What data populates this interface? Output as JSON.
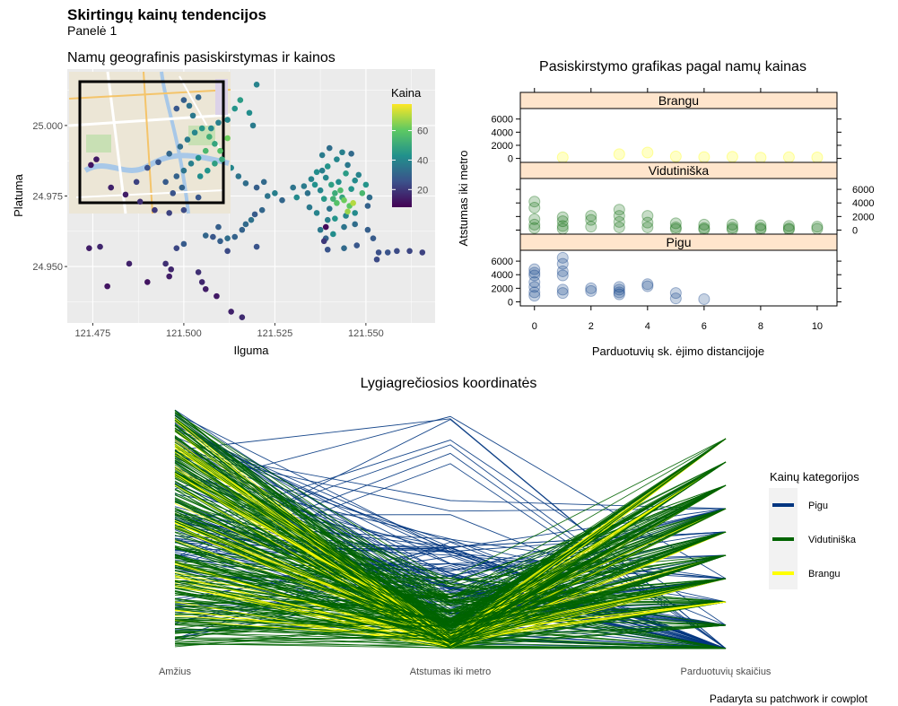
{
  "page": {
    "title": "Skirtingų kainų tendencijos",
    "subtitle": "Panelė 1",
    "caption": "Padaryta su patchwork ir cowplot"
  },
  "chart_data": [
    {
      "type": "scatter",
      "title": "Namų geografinis pasiskirstymas ir kainos",
      "xlabel": "Ilguma",
      "ylabel": "Platuma",
      "xlim": [
        121.468,
        121.569
      ],
      "ylim": [
        24.93,
        25.02
      ],
      "xticks": [
        121.475,
        121.5,
        121.525,
        121.55
      ],
      "xtick_labels": [
        "121.475",
        "121.500",
        "121.525",
        "121.550"
      ],
      "yticks": [
        24.95,
        24.975,
        25.0
      ],
      "ytick_labels": [
        "24.950",
        "24.975",
        "25.000"
      ],
      "grid": true,
      "legend": {
        "title": "Kaina",
        "ticks": [
          20,
          40,
          60
        ],
        "range": [
          8,
          78
        ],
        "placement": "right",
        "colormap": "viridis"
      },
      "inset": {
        "content": "street map",
        "placement": "top-left"
      },
      "points": [
        [
          121.5425,
          24.98,
          42
        ],
        [
          121.5445,
          24.983,
          46
        ],
        [
          121.539,
          24.9815,
          40
        ],
        [
          121.5405,
          24.979,
          47
        ],
        [
          121.546,
          24.9775,
          44
        ],
        [
          121.5415,
          24.976,
          51
        ],
        [
          121.5435,
          24.9745,
          49
        ],
        [
          121.547,
          24.9805,
          41
        ],
        [
          121.538,
          24.984,
          38
        ],
        [
          121.5395,
          24.9855,
          44
        ],
        [
          121.545,
          24.986,
          36
        ],
        [
          121.548,
          24.9825,
          39
        ],
        [
          121.536,
          24.979,
          43
        ],
        [
          121.5375,
          24.977,
          40
        ],
        [
          121.549,
          24.976,
          55
        ],
        [
          121.544,
          24.9735,
          62
        ],
        [
          121.542,
          24.9725,
          58
        ],
        [
          121.5455,
          24.9715,
          60
        ],
        [
          121.54,
          24.9705,
          35
        ],
        [
          121.5385,
          24.974,
          45
        ],
        [
          121.534,
          24.976,
          34
        ],
        [
          121.533,
          24.9785,
          37
        ],
        [
          121.535,
          24.981,
          39
        ],
        [
          121.5365,
          24.9835,
          42
        ],
        [
          121.55,
          24.979,
          44
        ],
        [
          121.551,
          24.9745,
          33
        ],
        [
          121.5505,
          24.9715,
          30
        ],
        [
          121.547,
          24.969,
          41
        ],
        [
          121.5445,
          24.968,
          40
        ],
        [
          121.5415,
          24.967,
          44
        ],
        [
          121.5395,
          24.9665,
          38
        ],
        [
          121.5365,
          24.969,
          39
        ],
        [
          121.5345,
          24.971,
          36
        ],
        [
          121.531,
          24.9745,
          41
        ],
        [
          121.53,
          24.978,
          35
        ],
        [
          121.542,
          24.988,
          40
        ],
        [
          121.5435,
          24.9905,
          38
        ],
        [
          121.54,
          24.992,
          33
        ],
        [
          121.538,
          24.9895,
          37
        ],
        [
          121.546,
          24.99,
          32
        ],
        [
          121.5375,
          24.963,
          36
        ],
        [
          121.539,
          24.96,
          30
        ],
        [
          121.541,
          24.9615,
          42
        ],
        [
          121.544,
          24.964,
          35
        ],
        [
          121.547,
          24.965,
          33
        ],
        [
          121.5505,
          24.963,
          29
        ],
        [
          121.552,
          24.96,
          28
        ],
        [
          121.5535,
          24.955,
          25
        ],
        [
          121.556,
          24.955,
          26
        ],
        [
          121.5585,
          24.9555,
          24
        ],
        [
          121.562,
          24.9555,
          23
        ],
        [
          121.5655,
          24.955,
          22
        ],
        [
          121.553,
          24.9525,
          24
        ],
        [
          121.5475,
          24.9575,
          27
        ],
        [
          121.544,
          24.9565,
          32
        ],
        [
          121.5395,
          24.956,
          26
        ],
        [
          121.5385,
          24.959,
          20
        ],
        [
          121.539,
          24.964,
          10
        ],
        [
          121.545,
          24.9695,
          67
        ],
        [
          121.5465,
          24.9725,
          70
        ],
        [
          121.543,
          24.977,
          56
        ],
        [
          121.541,
          24.974,
          53
        ],
        [
          121.525,
          24.976,
          38
        ],
        [
          121.523,
          24.975,
          35
        ],
        [
          121.527,
          24.9735,
          31
        ],
        [
          121.516,
          24.963,
          30
        ],
        [
          121.517,
          24.965,
          32
        ],
        [
          121.5185,
          24.9665,
          34
        ],
        [
          121.5195,
          24.9685,
          28
        ],
        [
          121.5215,
          24.97,
          31
        ],
        [
          121.514,
          24.9605,
          30
        ],
        [
          121.512,
          24.96,
          33
        ],
        [
          121.51,
          24.959,
          29
        ],
        [
          121.508,
          24.9605,
          27
        ],
        [
          121.506,
          24.961,
          31
        ],
        [
          121.5095,
          24.964,
          29
        ],
        [
          121.52,
          24.957,
          26
        ],
        [
          121.512,
          24.9555,
          24
        ],
        [
          121.5,
          24.958,
          28
        ],
        [
          121.498,
          24.9565,
          23
        ],
        [
          121.504,
          24.948,
          18
        ],
        [
          121.505,
          24.9445,
          16
        ],
        [
          121.506,
          24.942,
          14
        ],
        [
          121.509,
          24.9395,
          13
        ],
        [
          121.513,
          24.934,
          15
        ],
        [
          121.516,
          24.932,
          17
        ],
        [
          121.495,
          24.951,
          18
        ],
        [
          121.4965,
          24.949,
          16
        ],
        [
          121.496,
          24.9465,
          14
        ],
        [
          121.49,
          24.9445,
          12
        ],
        [
          121.485,
          24.951,
          15
        ],
        [
          121.479,
          24.943,
          12
        ],
        [
          121.477,
          24.957,
          16
        ],
        [
          121.474,
          24.9565,
          14
        ],
        [
          121.476,
          24.988,
          13
        ],
        [
          121.4745,
          24.986,
          12
        ],
        [
          121.48,
          24.978,
          15
        ],
        [
          121.484,
          24.9755,
          14
        ],
        [
          121.488,
          24.973,
          18
        ],
        [
          121.492,
          24.97,
          20
        ],
        [
          121.496,
          24.969,
          22
        ],
        [
          121.5,
          24.97,
          24
        ],
        [
          121.504,
          24.9745,
          27
        ],
        [
          121.487,
          24.98,
          22
        ],
        [
          121.49,
          24.985,
          25
        ],
        [
          121.493,
          24.987,
          27
        ],
        [
          121.496,
          24.99,
          31
        ],
        [
          121.499,
          24.9925,
          33
        ],
        [
          121.501,
          24.995,
          37
        ],
        [
          121.503,
          24.9975,
          40
        ],
        [
          121.505,
          24.999,
          45
        ],
        [
          121.507,
          24.996,
          52
        ],
        [
          121.5085,
          24.9935,
          49
        ],
        [
          121.51,
          24.991,
          58
        ],
        [
          121.506,
          24.991,
          55
        ],
        [
          121.504,
          24.9885,
          43
        ],
        [
          121.502,
          24.9865,
          38
        ],
        [
          121.5,
          24.984,
          35
        ],
        [
          121.498,
          24.982,
          30
        ],
        [
          121.495,
          24.98,
          28
        ],
        [
          121.5075,
          24.999,
          41
        ],
        [
          121.5095,
          25.001,
          38
        ],
        [
          121.5025,
          25.0035,
          36
        ],
        [
          121.5015,
          25.007,
          34
        ],
        [
          121.504,
          25.01,
          31
        ],
        [
          121.5,
          25.009,
          29
        ],
        [
          121.498,
          25.006,
          27
        ],
        [
          121.512,
          25.002,
          40
        ],
        [
          121.514,
          25.006,
          44
        ],
        [
          121.5155,
          25.009,
          46
        ],
        [
          121.518,
          25.0045,
          42
        ],
        [
          121.519,
          25.0,
          37
        ],
        [
          121.52,
          25.0145,
          39
        ],
        [
          121.512,
          24.9955,
          62
        ],
        [
          121.5105,
          24.988,
          50
        ],
        [
          121.5085,
          24.9865,
          47
        ],
        [
          121.5065,
          24.984,
          44
        ],
        [
          121.5045,
          24.982,
          42
        ],
        [
          121.513,
          24.985,
          40
        ],
        [
          121.515,
          24.982,
          35
        ],
        [
          121.517,
          24.9795,
          33
        ],
        [
          121.52,
          24.978,
          29
        ],
        [
          121.522,
          24.98,
          32
        ],
        [
          121.4995,
          24.978,
          30
        ],
        [
          121.497,
          24.976,
          26
        ]
      ]
    },
    {
      "type": "scatter",
      "title": "Pasiskirstymo grafikas pagal namų kainas",
      "xlabel": "Parduotuvių sk. ėjimo distancijoje",
      "ylabel": "Atstumas iki metro",
      "xlim": [
        -0.5,
        10.7
      ],
      "xticks": [
        0,
        2,
        4,
        6,
        8,
        10
      ],
      "ylim": [
        -600,
        7600
      ],
      "yticks": [
        0,
        2000,
        4000,
        6000
      ],
      "facets": [
        {
          "label": "Brangu",
          "color": "#ffff00",
          "points": [
            [
              1,
              150
            ],
            [
              3,
              650
            ],
            [
              4,
              900
            ],
            [
              5,
              300
            ],
            [
              6,
              200
            ],
            [
              7,
              250
            ],
            [
              8,
              120
            ],
            [
              9,
              180
            ],
            [
              10,
              150
            ]
          ]
        },
        {
          "label": "Vidutiniška",
          "color": "#006400",
          "points": [
            [
              0,
              4200
            ],
            [
              0,
              3300
            ],
            [
              0,
              1600
            ],
            [
              0,
              800
            ],
            [
              0,
              300
            ],
            [
              1,
              1900
            ],
            [
              1,
              1300
            ],
            [
              1,
              600
            ],
            [
              1,
              200
            ],
            [
              2,
              2100
            ],
            [
              2,
              1500
            ],
            [
              2,
              500
            ],
            [
              3,
              3000
            ],
            [
              3,
              2100
            ],
            [
              3,
              1200
            ],
            [
              3,
              400
            ],
            [
              4,
              2100
            ],
            [
              4,
              1100
            ],
            [
              4,
              400
            ],
            [
              5,
              1000
            ],
            [
              5,
              400
            ],
            [
              5,
              150
            ],
            [
              6,
              800
            ],
            [
              6,
              300
            ],
            [
              6,
              100
            ],
            [
              7,
              800
            ],
            [
              7,
              350
            ],
            [
              7,
              100
            ],
            [
              8,
              700
            ],
            [
              8,
              300
            ],
            [
              8,
              100
            ],
            [
              9,
              600
            ],
            [
              9,
              250
            ],
            [
              9,
              80
            ],
            [
              10,
              500
            ],
            [
              10,
              200
            ]
          ]
        },
        {
          "label": "Pigu",
          "color": "#003580",
          "points": [
            [
              0,
              4800
            ],
            [
              0,
              4300
            ],
            [
              0,
              3900
            ],
            [
              0,
              2900
            ],
            [
              0,
              2200
            ],
            [
              0,
              1400
            ],
            [
              0,
              900
            ],
            [
              1,
              6500
            ],
            [
              1,
              5600
            ],
            [
              1,
              4500
            ],
            [
              1,
              3900
            ],
            [
              1,
              1800
            ],
            [
              1,
              1300
            ],
            [
              2,
              2000
            ],
            [
              2,
              1600
            ],
            [
              3,
              2200
            ],
            [
              3,
              1800
            ],
            [
              3,
              1400
            ],
            [
              3,
              1100
            ],
            [
              4,
              2600
            ],
            [
              4,
              2300
            ],
            [
              5,
              1300
            ],
            [
              5,
              500
            ],
            [
              6,
              400
            ]
          ]
        }
      ]
    },
    {
      "type": "line",
      "title": "Lygiagrečiosios koordinatės",
      "axes": [
        "Amžius",
        "Atstumas iki metro",
        "Parduotuvių skaičius"
      ],
      "legend": {
        "title": "Kainų kategorijos",
        "placement": "right"
      },
      "series": [
        {
          "name": "Pigu",
          "color": "#003580"
        },
        {
          "name": "Vidutiniška",
          "color": "#006400"
        },
        {
          "name": "Brangu",
          "color": "#ffff00"
        }
      ]
    }
  ]
}
